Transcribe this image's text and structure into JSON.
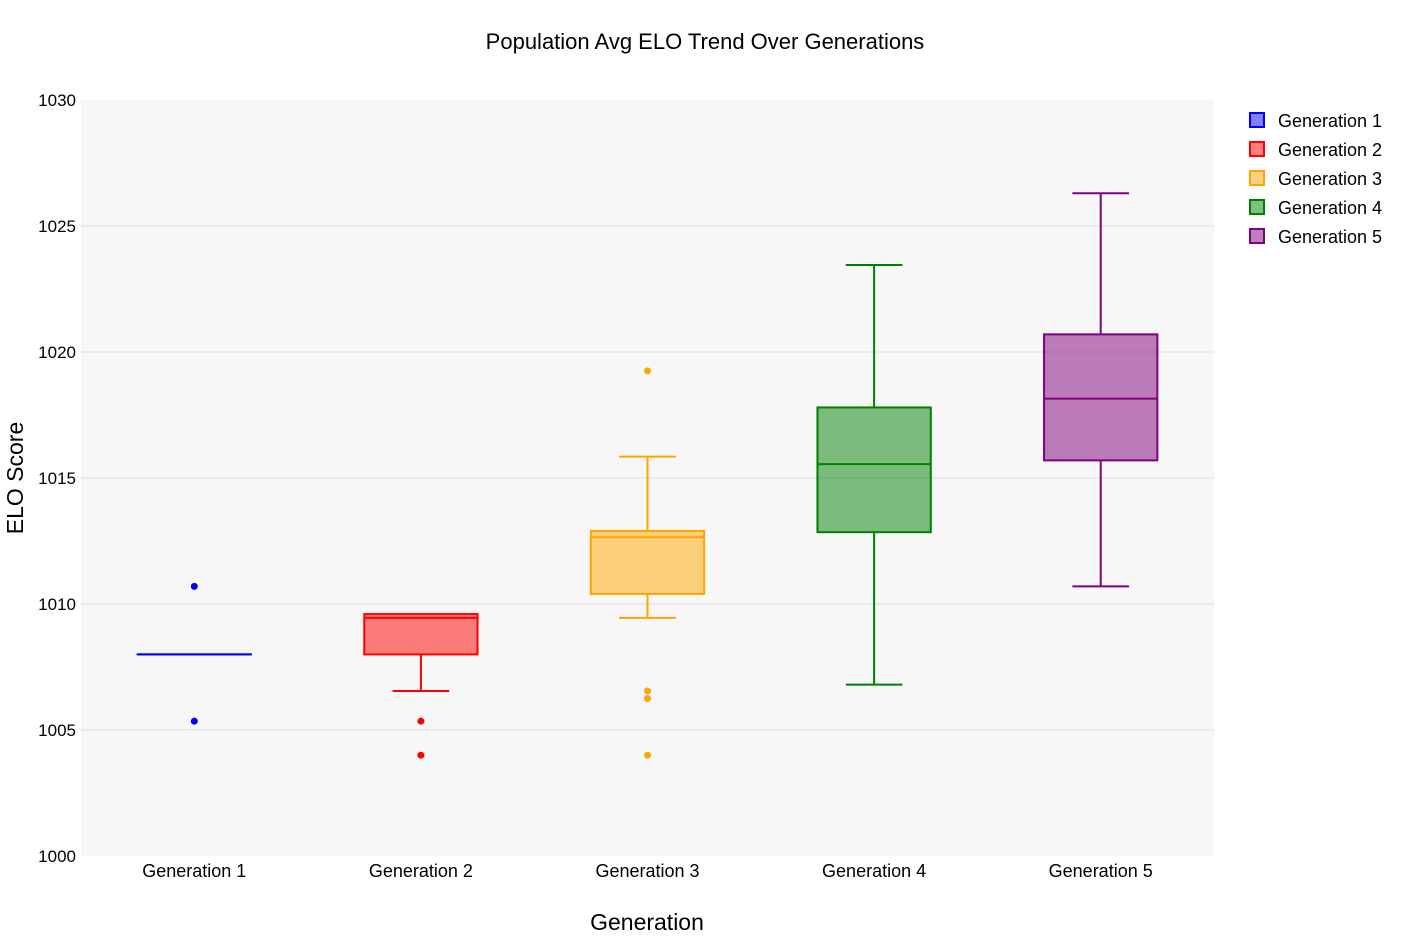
{
  "chart_data": {
    "type": "box",
    "title": "Population Avg ELO Trend Over Generations",
    "xlabel": "Generation",
    "ylabel": "ELO Score",
    "ylim": [
      1000,
      1030
    ],
    "yticks": [
      1000,
      1005,
      1010,
      1015,
      1020,
      1025,
      1030
    ],
    "categories": [
      "Generation 1",
      "Generation 2",
      "Generation 3",
      "Generation 4",
      "Generation 5"
    ],
    "series": [
      {
        "name": "Generation 1",
        "color": "#0000ff",
        "q1": 1008.0,
        "median": 1008.0,
        "q3": 1008.0,
        "lowerfence": 1008.0,
        "upperfence": 1008.0,
        "outliers": [
          1010.7,
          1005.35
        ]
      },
      {
        "name": "Generation 2",
        "color": "#ff0000",
        "q1": 1008.0,
        "median": 1009.45,
        "q3": 1009.6,
        "lowerfence": 1006.55,
        "upperfence": 1009.6,
        "outliers": [
          1005.35,
          1004.0
        ]
      },
      {
        "name": "Generation 3",
        "color": "#ffa500",
        "q1": 1010.4,
        "median": 1012.65,
        "q3": 1012.9,
        "lowerfence": 1009.45,
        "upperfence": 1015.85,
        "outliers": [
          1019.25,
          1006.55,
          1006.25,
          1004.0
        ]
      },
      {
        "name": "Generation 4",
        "color": "#008000",
        "q1": 1012.85,
        "median": 1015.55,
        "q3": 1017.8,
        "lowerfence": 1006.8,
        "upperfence": 1023.45,
        "outliers": []
      },
      {
        "name": "Generation 5",
        "color": "#800080",
        "q1": 1015.7,
        "median": 1018.15,
        "q3": 1020.7,
        "lowerfence": 1010.7,
        "upperfence": 1026.3,
        "outliers": []
      }
    ],
    "legend_position": "top-right"
  }
}
